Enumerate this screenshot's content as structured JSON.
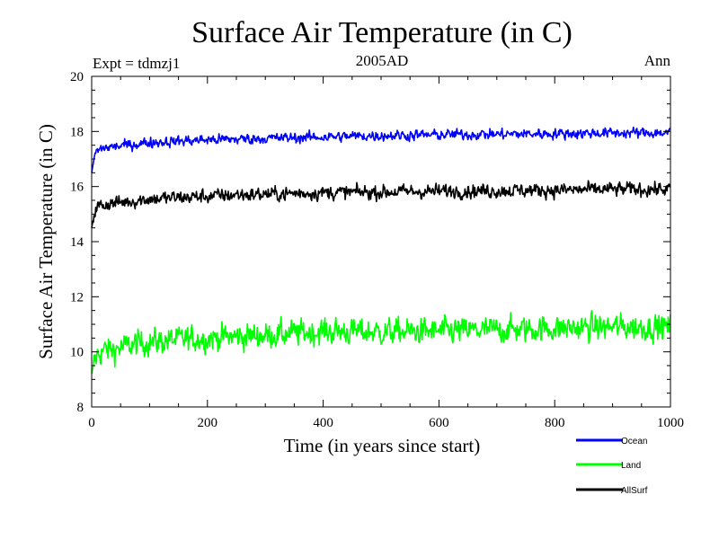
{
  "chart_data": {
    "type": "line",
    "title": "Surface Air Temperature (in C)",
    "subtitle_left": "Expt = tdmzj1",
    "subtitle_center": "2005AD",
    "subtitle_right": "Ann",
    "xlabel": "Time (in years since start)",
    "ylabel": "Surface Air Temperature (in C)",
    "xlim": [
      0,
      1000
    ],
    "ylim": [
      8,
      20
    ],
    "xticks": [
      "0",
      "200",
      "400",
      "600",
      "800",
      "1000"
    ],
    "yticks": [
      "8",
      "10",
      "12",
      "14",
      "16",
      "18",
      "20"
    ],
    "x_minor_step": 50,
    "y_minor_step": 0.5,
    "series": [
      {
        "name": "Ocean",
        "color": "#0000ff",
        "noise": 0.09,
        "x": [
          0,
          5,
          10,
          20,
          40,
          60,
          80,
          100,
          150,
          200,
          250,
          300,
          400,
          500,
          600,
          700,
          800,
          900,
          1000
        ],
        "values": [
          16.5,
          17.15,
          17.3,
          17.4,
          17.45,
          17.5,
          17.55,
          17.6,
          17.65,
          17.7,
          17.72,
          17.75,
          17.8,
          17.85,
          17.88,
          17.9,
          17.92,
          17.95,
          17.95
        ]
      },
      {
        "name": "Land",
        "color": "#00ff00",
        "noise": 0.22,
        "x": [
          0,
          5,
          10,
          20,
          40,
          60,
          80,
          100,
          150,
          200,
          250,
          300,
          400,
          500,
          600,
          700,
          800,
          900,
          1000
        ],
        "values": [
          9.2,
          9.7,
          9.9,
          10.05,
          10.1,
          10.2,
          10.3,
          10.35,
          10.45,
          10.5,
          10.55,
          10.6,
          10.75,
          10.72,
          10.75,
          10.8,
          10.85,
          10.9,
          10.9
        ]
      },
      {
        "name": "AllSurf",
        "color": "#000000",
        "noise": 0.12,
        "x": [
          0,
          5,
          10,
          20,
          40,
          60,
          80,
          100,
          150,
          200,
          250,
          300,
          400,
          500,
          600,
          700,
          800,
          900,
          1000
        ],
        "values": [
          14.5,
          15.1,
          15.25,
          15.35,
          15.4,
          15.45,
          15.5,
          15.55,
          15.6,
          15.65,
          15.7,
          15.72,
          15.78,
          15.8,
          15.83,
          15.85,
          15.87,
          15.9,
          15.9
        ]
      }
    ],
    "legend_placement": "bottom-right"
  }
}
